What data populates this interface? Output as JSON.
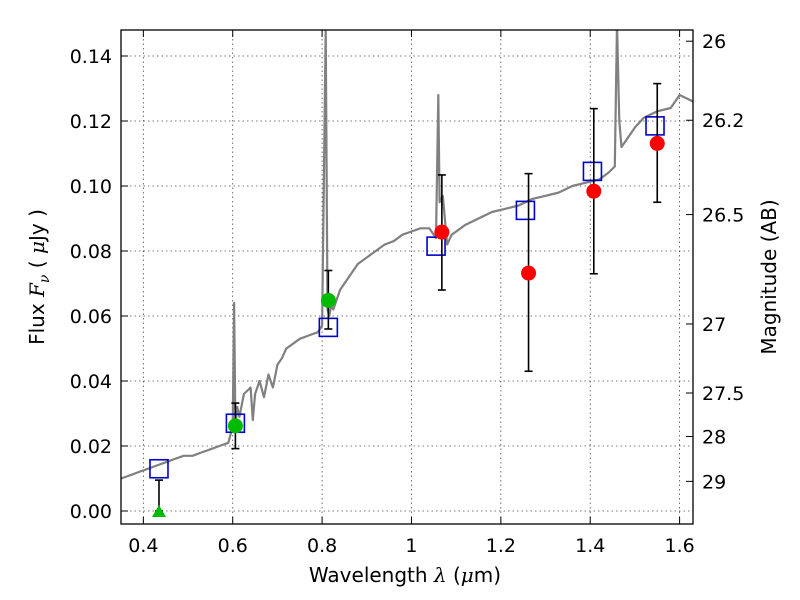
{
  "chart_data": {
    "type": "scatter",
    "xlabel": {
      "prefix": "Wavelength  ",
      "sym": "λ",
      "mid": " (",
      "mu": "μ",
      "suffix": "m)"
    },
    "ylabel": {
      "prefix": "Flux  ",
      "sym": "F",
      "sub": "ν",
      "mid": "  ( ",
      "mu": "μ",
      "suffix": "Jy )"
    },
    "y2label": "Magnitude (AB)",
    "xlim": [
      0.35,
      1.63
    ],
    "ylim": [
      -0.004,
      0.148
    ],
    "grid": true,
    "xticks": [
      {
        "v": 0.4,
        "label": "0.4"
      },
      {
        "v": 0.6,
        "label": "0.6"
      },
      {
        "v": 0.8,
        "label": "0.8"
      },
      {
        "v": 1.0,
        "label": "1"
      },
      {
        "v": 1.2,
        "label": "1.2"
      },
      {
        "v": 1.4,
        "label": "1.4"
      },
      {
        "v": 1.6,
        "label": "1.6"
      }
    ],
    "yticks": [
      {
        "v": 0.0,
        "label": "0.00"
      },
      {
        "v": 0.02,
        "label": "0.02"
      },
      {
        "v": 0.04,
        "label": "0.04"
      },
      {
        "v": 0.06,
        "label": "0.06"
      },
      {
        "v": 0.08,
        "label": "0.08"
      },
      {
        "v": 0.1,
        "label": "0.10"
      },
      {
        "v": 0.12,
        "label": "0.12"
      },
      {
        "v": 0.14,
        "label": "0.14"
      }
    ],
    "y2ticks": [
      {
        "mag": 26,
        "label": "26"
      },
      {
        "mag": 26.2,
        "label": "26.2"
      },
      {
        "mag": 26.5,
        "label": "26.5"
      },
      {
        "mag": 27,
        "label": "27"
      },
      {
        "mag": 27.5,
        "label": "27.5"
      },
      {
        "mag": 28,
        "label": "28"
      },
      {
        "mag": 29,
        "label": "29"
      }
    ],
    "colors": {
      "model": "#808080",
      "model_flux": "#0000cc",
      "detection_red": "#ff0000",
      "detection_green": "#00bb00",
      "errorbar": "#000000"
    },
    "model_spectrum": {
      "x": [
        0.35,
        0.37,
        0.39,
        0.41,
        0.43,
        0.45,
        0.47,
        0.49,
        0.51,
        0.53,
        0.55,
        0.57,
        0.59,
        0.6,
        0.603,
        0.606,
        0.61,
        0.615,
        0.625,
        0.64,
        0.645,
        0.65,
        0.66,
        0.67,
        0.68,
        0.69,
        0.7,
        0.71,
        0.72,
        0.73,
        0.75,
        0.77,
        0.79,
        0.8,
        0.808,
        0.812,
        0.816,
        0.82,
        0.825,
        0.84,
        0.86,
        0.88,
        0.9,
        0.92,
        0.94,
        0.96,
        0.98,
        1.0,
        1.02,
        1.04,
        1.055,
        1.06,
        1.063,
        1.066,
        1.07,
        1.08,
        1.09,
        1.1,
        1.11,
        1.12,
        1.15,
        1.18,
        1.21,
        1.24,
        1.27,
        1.3,
        1.33,
        1.36,
        1.39,
        1.42,
        1.44,
        1.455,
        1.46,
        1.465,
        1.47,
        1.48,
        1.5,
        1.52,
        1.55,
        1.58,
        1.6,
        1.63
      ],
      "y": [
        0.01,
        0.011,
        0.012,
        0.013,
        0.014,
        0.015,
        0.016,
        0.017,
        0.017,
        0.018,
        0.019,
        0.02,
        0.021,
        0.026,
        0.064,
        0.026,
        0.032,
        0.029,
        0.036,
        0.038,
        0.028,
        0.036,
        0.04,
        0.035,
        0.042,
        0.038,
        0.045,
        0.047,
        0.05,
        0.051,
        0.053,
        0.054,
        0.055,
        0.057,
        0.148,
        0.062,
        0.06,
        0.063,
        0.062,
        0.068,
        0.072,
        0.076,
        0.078,
        0.08,
        0.082,
        0.083,
        0.085,
        0.086,
        0.087,
        0.087,
        0.084,
        0.128,
        0.095,
        0.096,
        0.097,
        0.082,
        0.085,
        0.086,
        0.087,
        0.088,
        0.09,
        0.092,
        0.093,
        0.094,
        0.096,
        0.097,
        0.098,
        0.1,
        0.101,
        0.102,
        0.104,
        0.106,
        0.15,
        0.12,
        0.112,
        0.114,
        0.118,
        0.121,
        0.123,
        0.124,
        0.128,
        0.126
      ]
    },
    "model_fluxes": [
      {
        "x": 0.435,
        "y": 0.013
      },
      {
        "x": 0.606,
        "y": 0.027
      },
      {
        "x": 0.814,
        "y": 0.0565
      },
      {
        "x": 1.055,
        "y": 0.0815
      },
      {
        "x": 1.255,
        "y": 0.0925
      },
      {
        "x": 1.405,
        "y": 0.1045
      },
      {
        "x": 1.545,
        "y": 0.1185
      }
    ],
    "detections": [
      {
        "x": 0.606,
        "y": 0.0262,
        "ylo": 0.0192,
        "yhi": 0.0332,
        "color": "green",
        "marker": "circle"
      },
      {
        "x": 0.814,
        "y": 0.0648,
        "ylo": 0.056,
        "yhi": 0.074,
        "color": "green",
        "marker": "circle"
      },
      {
        "x": 1.068,
        "y": 0.0858,
        "ylo": 0.068,
        "yhi": 0.1034,
        "color": "red",
        "marker": "circle"
      },
      {
        "x": 1.262,
        "y": 0.0732,
        "ylo": 0.043,
        "yhi": 0.1038,
        "color": "red",
        "marker": "circle"
      },
      {
        "x": 1.408,
        "y": 0.0984,
        "ylo": 0.073,
        "yhi": 0.1238,
        "color": "red",
        "marker": "circle"
      },
      {
        "x": 1.55,
        "y": 0.1131,
        "ylo": 0.095,
        "yhi": 0.1315,
        "color": "red",
        "marker": "circle"
      }
    ],
    "upper_limits": [
      {
        "x": 0.435,
        "y": 0.0,
        "yhi": 0.0095,
        "color": "green",
        "marker": "triangle"
      }
    ]
  }
}
